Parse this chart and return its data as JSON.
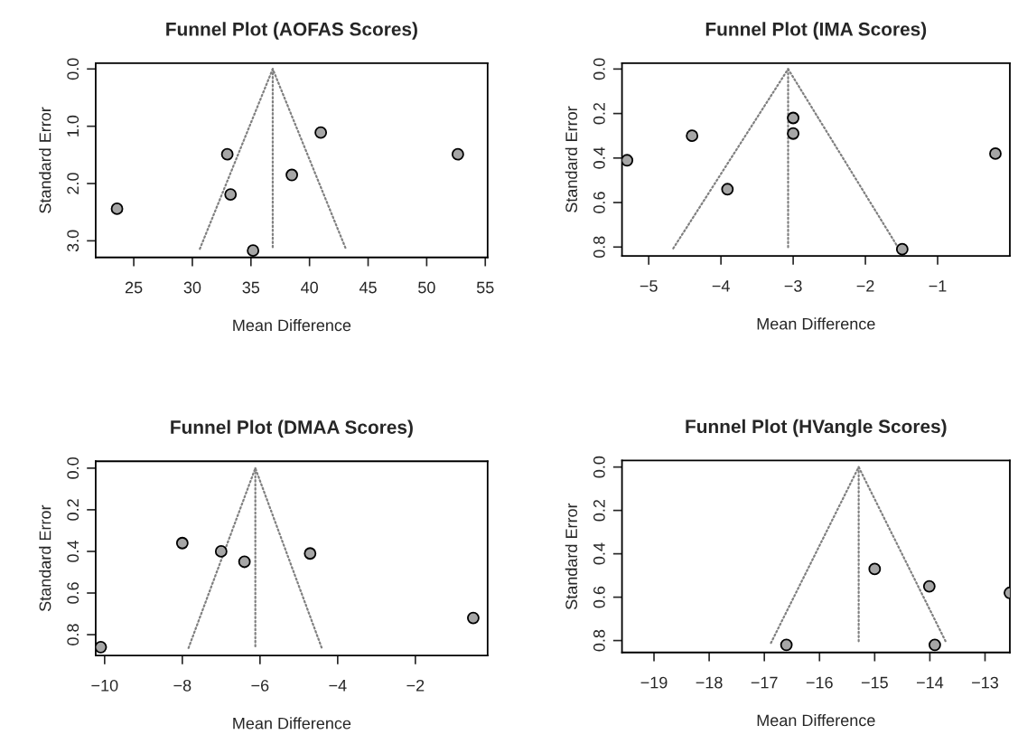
{
  "chart_data": [
    {
      "type": "scatter",
      "title": "Funnel Plot (AOFAS Scores)",
      "xlabel": "Mean Difference",
      "ylabel": "Standard Error",
      "xlim": [
        21.75,
        55.2
      ],
      "ylim": [
        3.29,
        -0.1
      ],
      "xticks": [
        25,
        30,
        35,
        40,
        45,
        50,
        55
      ],
      "yticks": [
        {
          "value": 0,
          "label": "0.0"
        },
        {
          "value": 1,
          "label": "1.0"
        },
        {
          "value": 2,
          "label": "2.0"
        },
        {
          "value": 3,
          "label": "3.0"
        }
      ],
      "grid": false,
      "series": [
        {
          "type": "line",
          "line_style": "dotted",
          "color": "#808080",
          "x": [
            30.64,
            36.86,
            43.1
          ],
          "values": [
            3.14,
            0,
            3.14
          ]
        },
        {
          "type": "line",
          "line_style": "dotted",
          "color": "#808080",
          "x": [
            36.86,
            36.86
          ],
          "values": [
            0,
            3.14
          ]
        },
        {
          "marker": "circle",
          "color": "#a6a6a6",
          "x": [
            32.98,
            40.96,
            52.66,
            38.49,
            33.26,
            23.57,
            35.18
          ],
          "values": [
            1.49,
            1.11,
            1.49,
            1.85,
            2.19,
            2.44,
            3.17
          ]
        }
      ]
    },
    {
      "type": "scatter",
      "title": "Funnel Plot (IMA Scores)",
      "xlabel": "Mean Difference",
      "ylabel": "Standard Error",
      "xlim": [
        -5.37,
        0.0
      ],
      "ylim": [
        0.84,
        -0.026
      ],
      "xticks": [
        {
          "value": -5,
          "label": "−5"
        },
        {
          "value": -4,
          "label": "−4"
        },
        {
          "value": -3,
          "label": "−3"
        },
        {
          "value": -2,
          "label": "−2"
        },
        {
          "value": -1,
          "label": "−1"
        }
      ],
      "yticks": [
        {
          "value": 0,
          "label": "0.0"
        },
        {
          "value": 0.2,
          "label": "0.2"
        },
        {
          "value": 0.4,
          "label": "0.4"
        },
        {
          "value": 0.6,
          "label": "0.6"
        },
        {
          "value": 0.8,
          "label": "0.8"
        }
      ],
      "grid": false,
      "series": [
        {
          "type": "line",
          "line_style": "dotted",
          "color": "#808080",
          "x": [
            -4.66,
            -3.07,
            -1.54
          ],
          "values": [
            0.806,
            0,
            0.806
          ]
        },
        {
          "type": "line",
          "line_style": "dotted",
          "color": "#808080",
          "x": [
            -3.07,
            -3.07
          ],
          "values": [
            0,
            0.806
          ]
        },
        {
          "marker": "circle",
          "color": "#a6a6a6",
          "x": [
            -5.3,
            -4.4,
            -3.0,
            -3.0,
            -0.2,
            -3.91,
            -1.49
          ],
          "values": [
            0.41,
            0.3,
            0.22,
            0.29,
            0.38,
            0.54,
            0.81
          ]
        }
      ]
    },
    {
      "type": "scatter",
      "title": "Funnel Plot (DMAA Scores)",
      "xlabel": "Mean Difference",
      "ylabel": "Standard Error",
      "xlim": [
        -10.23,
        -0.14
      ],
      "ylim": [
        0.9,
        -0.033
      ],
      "xticks": [
        {
          "value": -10,
          "label": "−10"
        },
        {
          "value": -8,
          "label": "−8"
        },
        {
          "value": -6,
          "label": "−6"
        },
        {
          "value": -4,
          "label": "−4"
        },
        {
          "value": -2,
          "label": "−2"
        }
      ],
      "yticks": [
        {
          "value": 0,
          "label": "0.0"
        },
        {
          "value": 0.2,
          "label": "0.2"
        },
        {
          "value": 0.4,
          "label": "0.4"
        },
        {
          "value": 0.6,
          "label": "0.6"
        },
        {
          "value": 0.8,
          "label": "0.8"
        }
      ],
      "grid": false,
      "series": [
        {
          "type": "line",
          "line_style": "dotted",
          "color": "#808080",
          "x": [
            -7.84,
            -6.12,
            -4.41
          ],
          "values": [
            0.864,
            0,
            0.864
          ]
        },
        {
          "type": "line",
          "line_style": "dotted",
          "color": "#808080",
          "x": [
            -6.12,
            -6.12
          ],
          "values": [
            0,
            0.864
          ]
        },
        {
          "marker": "circle",
          "color": "#a6a6a6",
          "x": [
            -8.0,
            -7.0,
            -6.4,
            -4.71,
            -0.51,
            -10.1
          ],
          "values": [
            0.36,
            0.4,
            0.45,
            0.41,
            0.72,
            0.86
          ]
        }
      ]
    },
    {
      "type": "scatter",
      "title": "Funnel Plot (HVangle Scores)",
      "xlabel": "Mean Difference",
      "ylabel": "Standard Error",
      "xlim": [
        -19.58,
        -12.55
      ],
      "ylim": [
        0.855,
        -0.03
      ],
      "xticks": [
        {
          "value": -19,
          "label": "−19"
        },
        {
          "value": -18,
          "label": "−18"
        },
        {
          "value": -17,
          "label": "−17"
        },
        {
          "value": -16,
          "label": "−16"
        },
        {
          "value": -15,
          "label": "−15"
        },
        {
          "value": -14,
          "label": "−14"
        },
        {
          "value": -13,
          "label": "−13"
        }
      ],
      "yticks": [
        {
          "value": 0,
          "label": "0.0"
        },
        {
          "value": 0.2,
          "label": "0.2"
        },
        {
          "value": 0.4,
          "label": "0.4"
        },
        {
          "value": 0.6,
          "label": "0.6"
        },
        {
          "value": 0.8,
          "label": "0.8"
        }
      ],
      "grid": false,
      "series": [
        {
          "type": "line",
          "line_style": "dotted",
          "color": "#808080",
          "x": [
            -16.88,
            -15.29,
            -13.7
          ],
          "values": [
            0.811,
            0,
            0.811
          ]
        },
        {
          "type": "line",
          "line_style": "dotted",
          "color": "#808080",
          "x": [
            -15.29,
            -15.29
          ],
          "values": [
            0,
            0.811
          ]
        },
        {
          "marker": "circle",
          "color": "#a6a6a6",
          "x": [
            -15.0,
            -14.01,
            -13.91,
            -16.6,
            -12.55
          ],
          "values": [
            0.47,
            0.55,
            0.82,
            0.82,
            0.58
          ]
        }
      ]
    }
  ]
}
